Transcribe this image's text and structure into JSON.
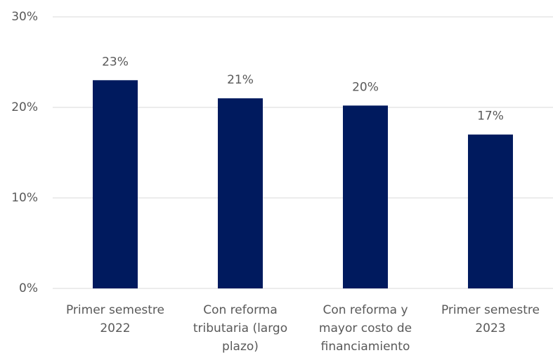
{
  "chart_data": {
    "type": "bar",
    "categories": [
      "Primer semestre 2022",
      "Con reforma tributaria (largo plazo)",
      "Con reforma y mayor costo de financiamiento",
      "Primer semestre 2023"
    ],
    "values": [
      23,
      21,
      20.2,
      17
    ],
    "value_labels": [
      "23%",
      "21%",
      "20%",
      "17%"
    ],
    "color": "#001a5e",
    "ylim": [
      0,
      30
    ],
    "yticks": [
      {
        "value": 0,
        "label": "0%"
      },
      {
        "value": 10,
        "label": "10%"
      },
      {
        "value": 20,
        "label": "20%"
      },
      {
        "value": 30,
        "label": "30%"
      }
    ],
    "grid": true
  }
}
